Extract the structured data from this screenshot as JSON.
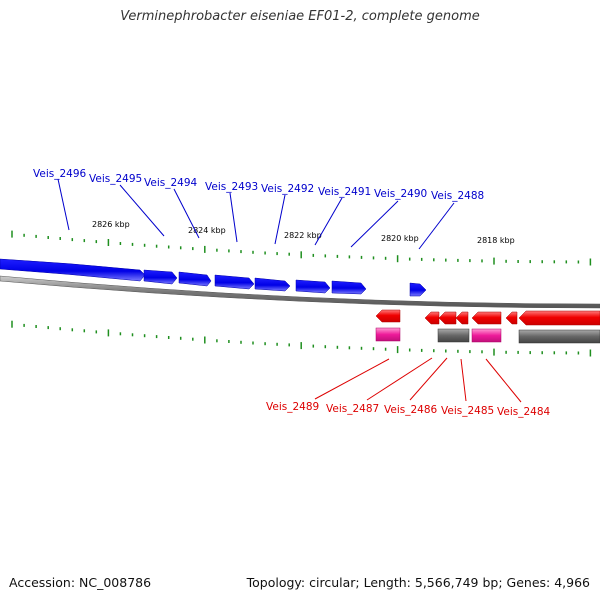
{
  "title": "Verminephrobacter eiseniae EF01-2, complete genome",
  "footer": {
    "accession": "Accession: NC_008786",
    "stats": "Topology: circular; Length: 5,566,749 bp; Genes: 4,966"
  },
  "colors": {
    "forward_gene": "#0000ee",
    "reverse_gene": "#ee0000",
    "pink_feature": "#ee1a9a",
    "gray_feature": "#666666",
    "backbone": "#777777",
    "tick": "#1f8f1f",
    "forward_label": "#0000cc",
    "reverse_label": "#dd0000"
  },
  "scale_labels": [
    "2826 kbp",
    "2824 kbp",
    "2822 kbp",
    "2820 kbp",
    "2818 kbp"
  ],
  "forward_genes": [
    "Veis_2496",
    "Veis_2495",
    "Veis_2494",
    "Veis_2493",
    "Veis_2492",
    "Veis_2491",
    "Veis_2490",
    "Veis_2488"
  ],
  "reverse_genes": [
    "Veis_2489",
    "Veis_2487",
    "Veis_2486",
    "Veis_2485",
    "Veis_2484"
  ]
}
